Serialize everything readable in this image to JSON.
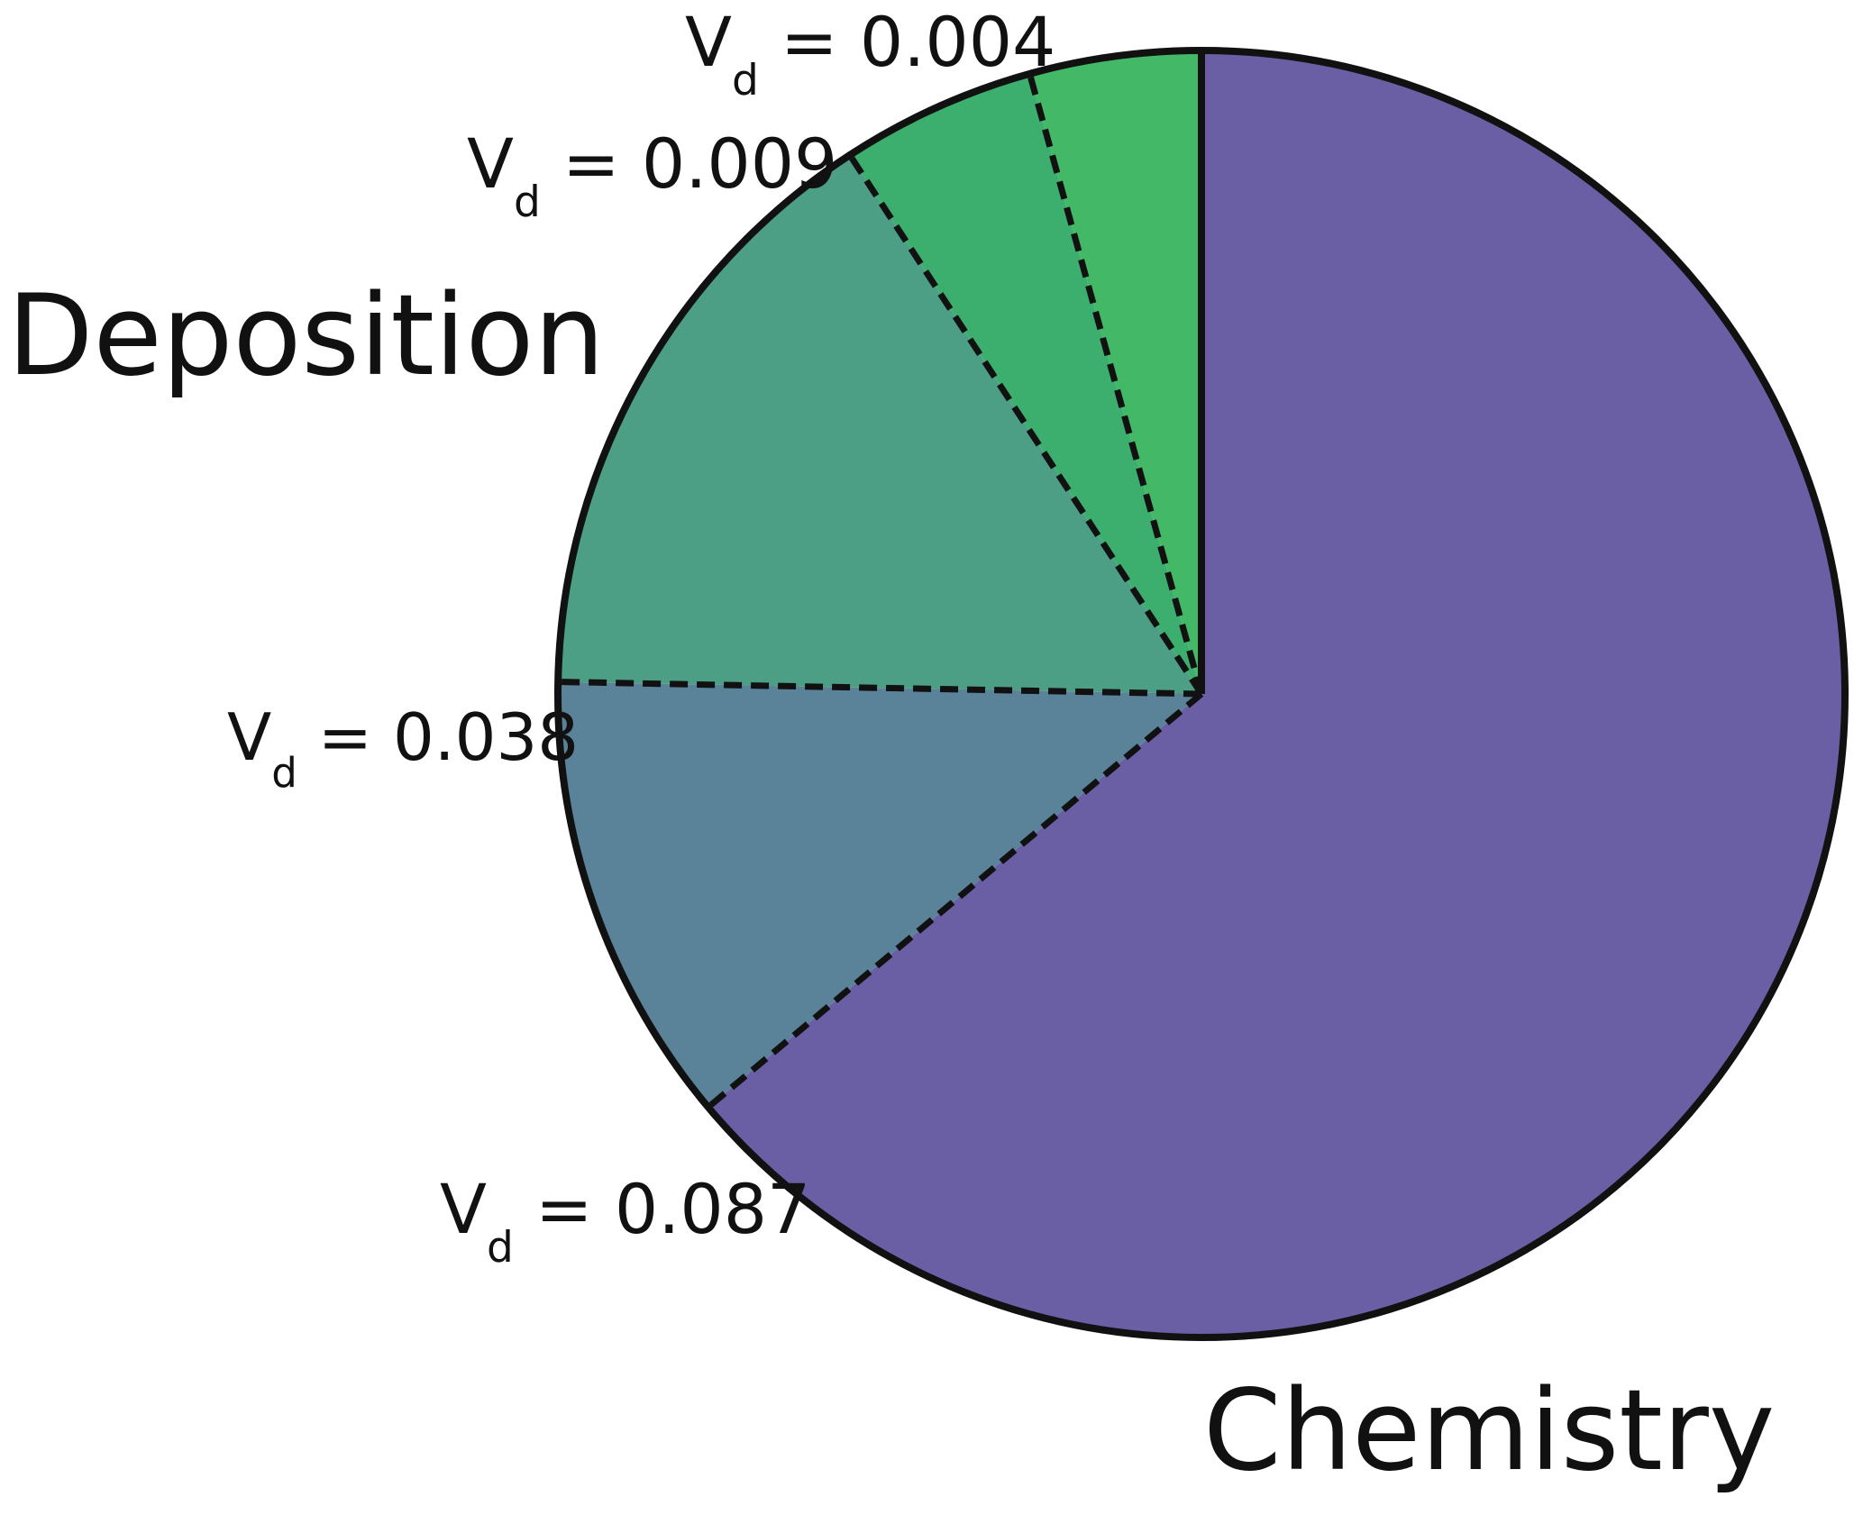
{
  "chart_data": {
    "type": "pie",
    "slices": [
      {
        "label": "",
        "share": 0.639,
        "color": "#6a5ea5"
      },
      {
        "label": "",
        "share": 0.114,
        "color": "#5a8299"
      },
      {
        "label": "",
        "share": 0.155,
        "color": "#4c9f84"
      },
      {
        "label": "",
        "share": 0.049,
        "color": "#3cae6e"
      },
      {
        "label": "",
        "share": 0.043,
        "color": "#43b866"
      }
    ],
    "group_labels": {
      "deposition": "Deposition",
      "chemistry": "Chemistry"
    },
    "boundary_labels": [
      {
        "symbol": "V",
        "subscript": "d",
        "operator": "=",
        "value": "0.087"
      },
      {
        "symbol": "V",
        "subscript": "d",
        "operator": "=",
        "value": "0.038"
      },
      {
        "symbol": "V",
        "subscript": "d",
        "operator": "=",
        "value": "0.009"
      },
      {
        "symbol": "V",
        "subscript": "d",
        "operator": "=",
        "value": "0.004"
      }
    ],
    "outline_color": "#111111"
  }
}
